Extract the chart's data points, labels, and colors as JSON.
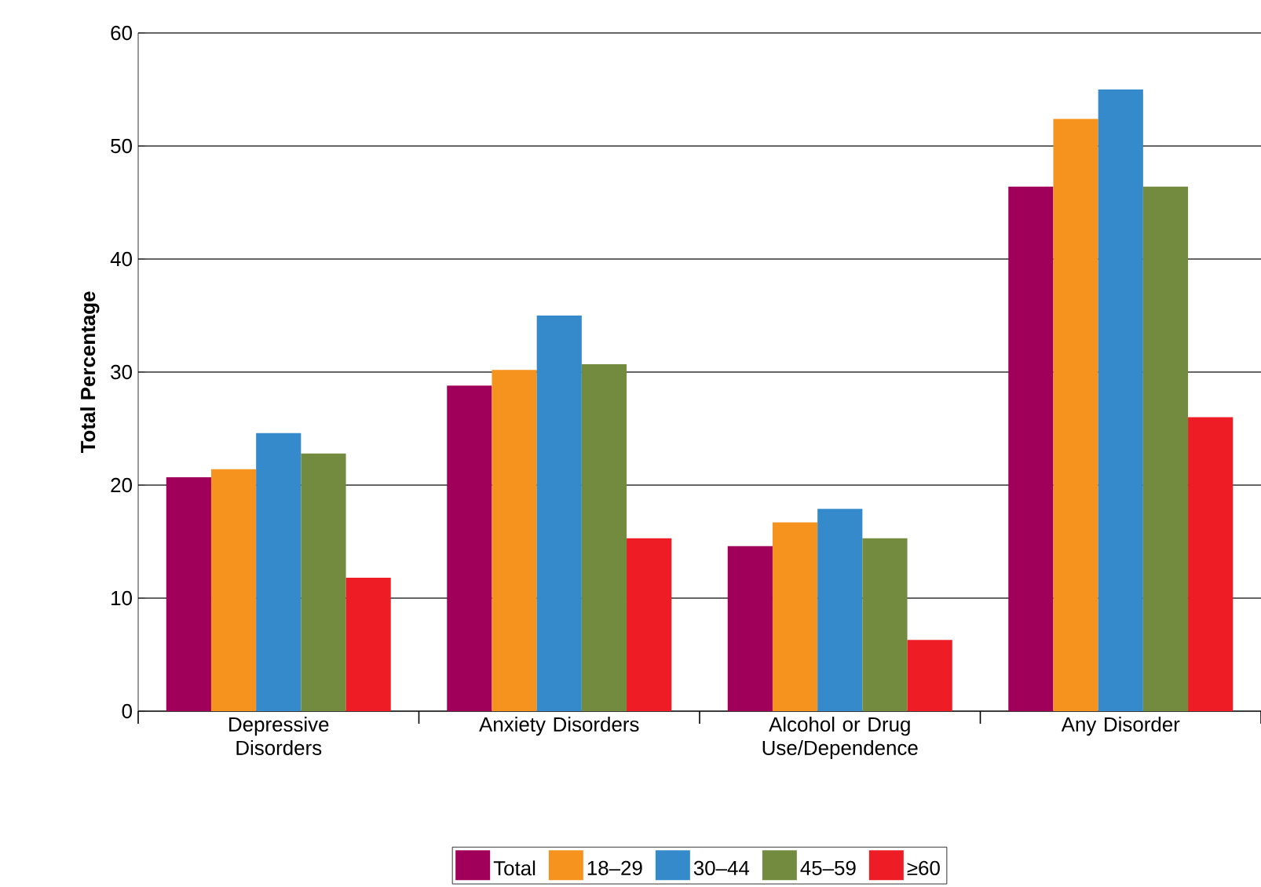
{
  "chart_data": {
    "type": "bar",
    "ylabel": "Total Percentage",
    "categories": [
      "Depressive Disorders",
      "Anxiety Disorders",
      "Alcohol or Drug Use/Dependence",
      "Any Disorder"
    ],
    "series": [
      {
        "name": "Total",
        "color": "#a0005a",
        "values": [
          20.7,
          28.8,
          14.6,
          46.4
        ]
      },
      {
        "name": "18–29",
        "color": "#f6921e",
        "values": [
          21.4,
          30.2,
          16.7,
          52.4
        ]
      },
      {
        "name": "30–44",
        "color": "#348acb",
        "values": [
          24.6,
          35.0,
          17.9,
          55.0
        ]
      },
      {
        "name": "45–59",
        "color": "#738b3f",
        "values": [
          22.8,
          30.7,
          15.3,
          46.4
        ]
      },
      {
        "name": "≥60",
        "color": "#ee1c24",
        "values": [
          11.8,
          15.3,
          6.3,
          26.0
        ]
      }
    ],
    "ylim": [
      0,
      60
    ],
    "yticks": [
      0,
      10,
      20,
      30,
      40,
      50,
      60
    ],
    "grid": "y",
    "legend": "bottom"
  }
}
